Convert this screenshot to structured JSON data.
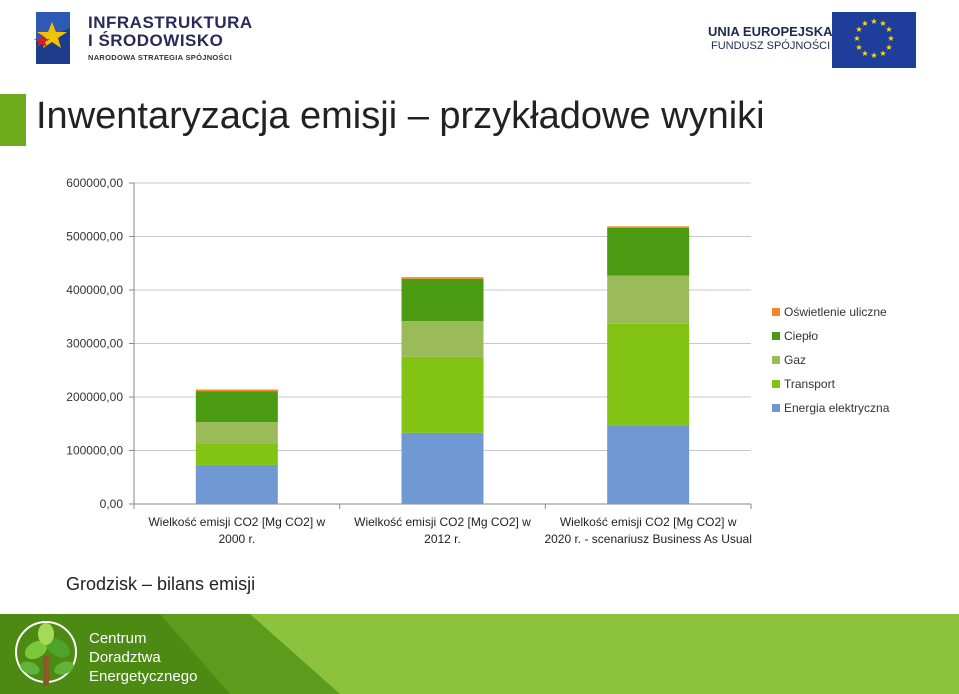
{
  "header": {
    "logo_left_line1": "INFRASTRUKTURA",
    "logo_left_line2": "I ŚRODOWISKO",
    "logo_left_line3": "NARODOWA STRATEGIA SPÓJNOŚCI",
    "logo_right_line1": "UNIA EUROPEJSKA",
    "logo_right_line2": "FUNDUSZ SPÓJNOŚCI"
  },
  "title": "Inwentaryzacja emisji – przykładowe wyniki",
  "subtitle": "Grodzisk – bilans emisji",
  "footer": {
    "line1": "Centrum",
    "line2": "Doradztwa",
    "line3": "Energetycznego"
  },
  "colors": {
    "accent": "#6fa91c",
    "footer_green": "#8dc23d"
  },
  "chart_data": {
    "type": "bar",
    "stacked": true,
    "ylim": [
      0,
      600000
    ],
    "y_ticks": [
      "0,00",
      "100000,00",
      "200000,00",
      "300000,00",
      "400000,00",
      "500000,00",
      "600000,00"
    ],
    "y_tick_values": [
      0,
      100000,
      200000,
      300000,
      400000,
      500000,
      600000
    ],
    "grid": true,
    "legend_position": "right",
    "categories": [
      [
        "Wielkość emisji CO2 [Mg CO2] w",
        "2000 r."
      ],
      [
        "Wielkość emisji CO2 [Mg CO2] w",
        "2012 r."
      ],
      [
        "Wielkość emisji CO2 [Mg CO2] w",
        "2020 r. - scenariusz Business As Usual"
      ]
    ],
    "series": [
      {
        "name": "Energia elektryczna",
        "color": "#7099d4",
        "values": [
          73000,
          133000,
          147000
        ]
      },
      {
        "name": "Transport",
        "color": "#82c314",
        "values": [
          40000,
          142000,
          190000
        ]
      },
      {
        "name": "Gaz",
        "color": "#9bbb59",
        "values": [
          40000,
          67000,
          90000
        ]
      },
      {
        "name": "Ciepło",
        "color": "#4a9a12",
        "values": [
          58000,
          79000,
          89000
        ]
      },
      {
        "name": "Oświetlenie uliczne",
        "color": "#f58a22",
        "values": [
          3000,
          3000,
          3000
        ]
      }
    ]
  }
}
